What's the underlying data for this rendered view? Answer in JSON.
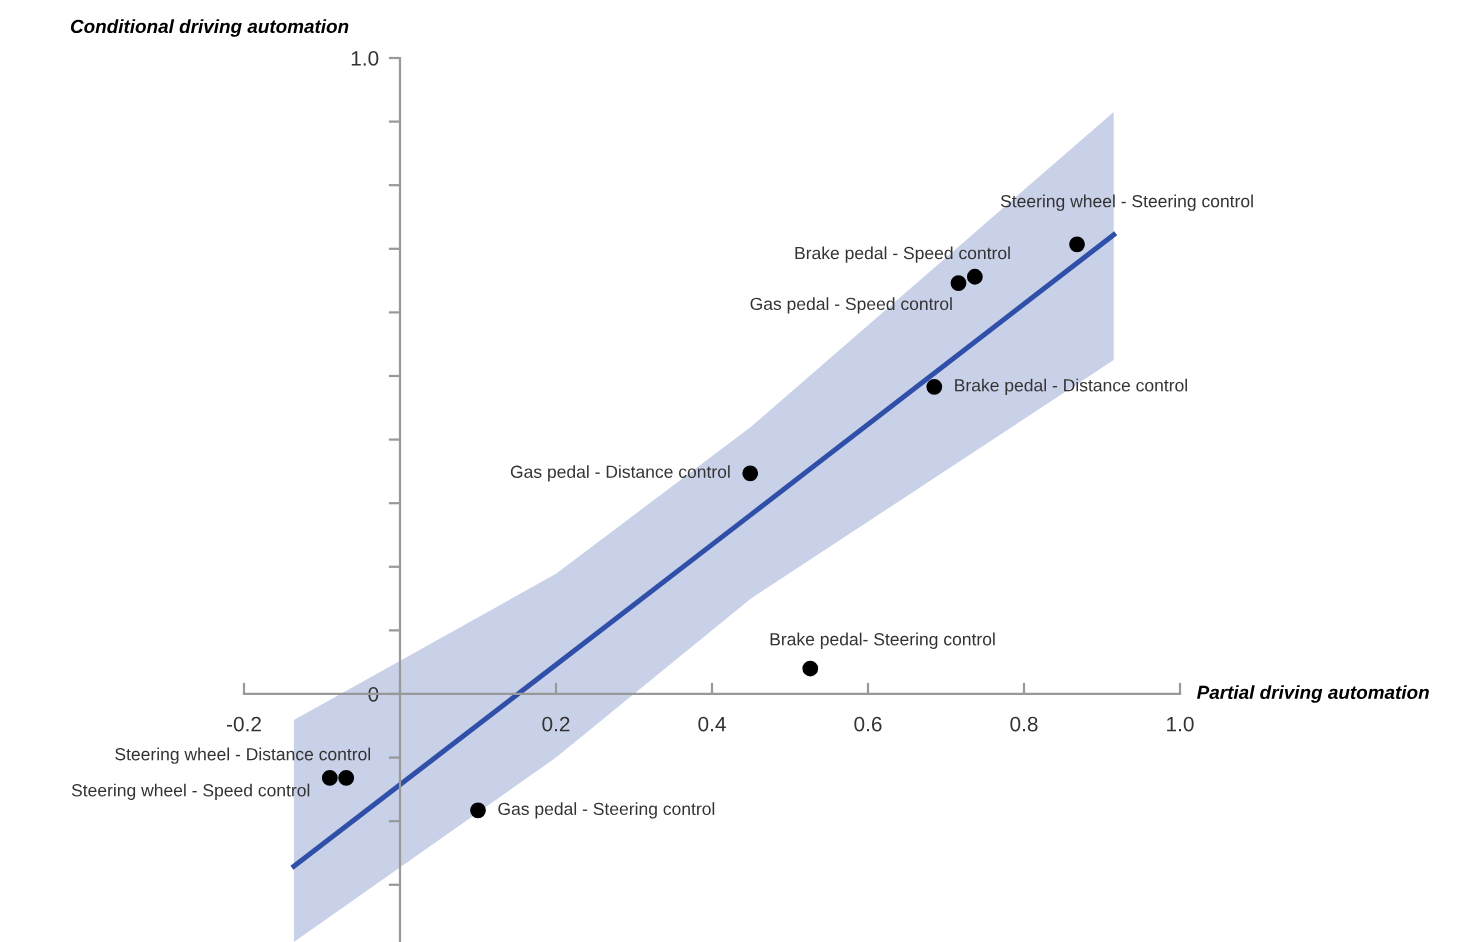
{
  "chart_data": {
    "type": "scatter",
    "title": "Conditional driving automation",
    "xlabel": "Partial driving automation",
    "xlim": [
      -0.2,
      1.0
    ],
    "ylim": [
      -0.39,
      1.0
    ],
    "xticks": [
      -0.2,
      {
        "value": 0,
        "label": null
      },
      0.2,
      0.4,
      0.6,
      0.8,
      {
        "value": 1.0,
        "label": "1.0"
      }
    ],
    "yticks": [
      {
        "value": -0.3,
        "label": null
      },
      {
        "value": -0.2,
        "label": null
      },
      {
        "value": -0.1,
        "label": null
      },
      0,
      {
        "value": 0.1,
        "label": null
      },
      {
        "value": 0.2,
        "label": null
      },
      {
        "value": 0.3,
        "label": null
      },
      {
        "value": 0.4,
        "label": null
      },
      {
        "value": 0.5,
        "label": null
      },
      {
        "value": 0.6,
        "label": null
      },
      {
        "value": 0.7,
        "label": null
      },
      {
        "value": 0.8,
        "label": null
      },
      {
        "value": 0.9,
        "label": null
      },
      {
        "value": 1.0,
        "label": "1.0"
      }
    ],
    "grid": false,
    "legend": false,
    "series": [
      {
        "type": "line",
        "marker": "none",
        "color": "#2f4fa8",
        "x": [
          -0.136,
          0.2,
          0.45,
          0.915
        ],
        "values": [
          -0.271,
          0.046,
          0.282,
          0.722
        ],
        "lower": [
          -0.39,
          -0.1,
          0.15,
          0.525
        ],
        "upper": [
          -0.041,
          0.189,
          0.42,
          0.915
        ]
      },
      {
        "marker": "circle",
        "color": "#000000",
        "x": [
          0.868,
          0.737,
          0.716,
          0.685,
          0.449,
          0.526,
          -0.069,
          -0.09,
          0.1
        ],
        "values": [
          0.707,
          0.656,
          0.646,
          0.483,
          0.347,
          0.04,
          -0.132,
          -0.132,
          -0.183
        ]
      }
    ],
    "annotations": [
      {
        "text": "Steering wheel - Steering control",
        "x": 0.868,
        "y": 0.707
      },
      {
        "text": "Brake pedal - Speed control",
        "x": 0.737,
        "y": 0.656
      },
      {
        "text": "Gas pedal - Speed control",
        "x": 0.716,
        "y": 0.646
      },
      {
        "text": "Brake pedal - Distance control",
        "x": 0.685,
        "y": 0.483
      },
      {
        "text": "Gas pedal - Distance control",
        "x": 0.449,
        "y": 0.347
      },
      {
        "text": "Brake pedal- Steering control",
        "x": 0.526,
        "y": 0.04
      },
      {
        "text": "Steering wheel - Distance control",
        "x": -0.069,
        "y": -0.132
      },
      {
        "text": "Steering wheel - Speed control",
        "x": -0.09,
        "y": -0.132
      },
      {
        "text": "Gas pedal - Steering control",
        "x": 0.1,
        "y": -0.183
      }
    ]
  }
}
